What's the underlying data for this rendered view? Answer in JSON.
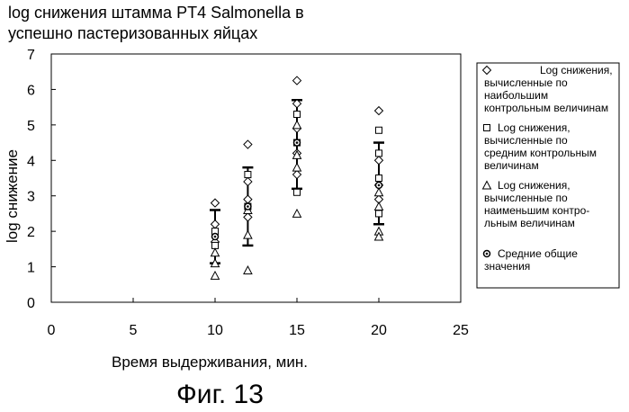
{
  "chart_data": {
    "type": "scatter",
    "title_line1": "log снижения штамма PT4 Salmonella в",
    "title_line2": "успешно пастеризованных яйцах",
    "xlabel": "Время выдерживания, мин.",
    "ylabel": "log снижение",
    "xlim": [
      0,
      25
    ],
    "ylim": [
      0,
      7
    ],
    "x_ticks": [
      "0",
      "5",
      "10",
      "15",
      "20",
      "25"
    ],
    "y_ticks": [
      "0",
      "1",
      "2",
      "3",
      "4",
      "5",
      "6",
      "7"
    ],
    "grid": false,
    "legend_position": "right",
    "legend": [
      {
        "marker": "diamond",
        "lines": [
          "Log снижения,",
          "вычисленные по",
          "наибольшим",
          "контрольным величинам"
        ]
      },
      {
        "marker": "square",
        "lines": [
          "Log снижения,",
          "вычисленные по",
          "средним контрольным",
          "величинам"
        ]
      },
      {
        "marker": "triangle",
        "lines": [
          "Log снижения,",
          "вычисленные по",
          "наименьшим контро-",
          "льным величинам"
        ]
      },
      {
        "marker": "circle",
        "lines": [
          "Средние общие",
          "значения"
        ]
      }
    ],
    "series": [
      {
        "marker": "diamond",
        "points": [
          {
            "x": 10,
            "y": 2.8
          },
          {
            "x": 10,
            "y": 2.2
          },
          {
            "x": 10,
            "y": 1.7
          },
          {
            "x": 12,
            "y": 4.45
          },
          {
            "x": 12,
            "y": 3.4
          },
          {
            "x": 12,
            "y": 2.9
          },
          {
            "x": 12,
            "y": 2.4
          },
          {
            "x": 15,
            "y": 6.25
          },
          {
            "x": 15,
            "y": 5.6
          },
          {
            "x": 15,
            "y": 4.9
          },
          {
            "x": 15,
            "y": 4.2
          },
          {
            "x": 15,
            "y": 3.6
          },
          {
            "x": 20,
            "y": 5.4
          },
          {
            "x": 20,
            "y": 4.0
          },
          {
            "x": 20,
            "y": 3.3
          },
          {
            "x": 20,
            "y": 2.9
          }
        ]
      },
      {
        "marker": "square",
        "points": [
          {
            "x": 10,
            "y": 2.0
          },
          {
            "x": 10,
            "y": 1.6
          },
          {
            "x": 12,
            "y": 3.6
          },
          {
            "x": 12,
            "y": 2.7
          },
          {
            "x": 15,
            "y": 5.3
          },
          {
            "x": 15,
            "y": 4.5
          },
          {
            "x": 15,
            "y": 3.1
          },
          {
            "x": 20,
            "y": 4.85
          },
          {
            "x": 20,
            "y": 4.2
          },
          {
            "x": 20,
            "y": 3.5
          },
          {
            "x": 20,
            "y": 2.5
          }
        ]
      },
      {
        "marker": "triangle",
        "points": [
          {
            "x": 10,
            "y": 1.4
          },
          {
            "x": 10,
            "y": 1.1
          },
          {
            "x": 10,
            "y": 0.75
          },
          {
            "x": 12,
            "y": 2.6
          },
          {
            "x": 12,
            "y": 1.9
          },
          {
            "x": 12,
            "y": 0.9
          },
          {
            "x": 15,
            "y": 5.0
          },
          {
            "x": 15,
            "y": 4.15
          },
          {
            "x": 15,
            "y": 3.8
          },
          {
            "x": 15,
            "y": 2.5
          },
          {
            "x": 20,
            "y": 3.1
          },
          {
            "x": 20,
            "y": 2.7
          },
          {
            "x": 20,
            "y": 2.0
          },
          {
            "x": 20,
            "y": 1.85
          }
        ]
      },
      {
        "marker": "circle",
        "points": [
          {
            "x": 10,
            "y": 1.85
          },
          {
            "x": 12,
            "y": 2.7
          },
          {
            "x": 15,
            "y": 4.5
          },
          {
            "x": 20,
            "y": 3.3
          }
        ]
      }
    ],
    "error_bars": [
      {
        "x": 10,
        "low": 1.1,
        "high": 2.6
      },
      {
        "x": 12,
        "low": 1.6,
        "high": 3.8
      },
      {
        "x": 15,
        "low": 3.2,
        "high": 5.7
      },
      {
        "x": 20,
        "low": 2.2,
        "high": 4.5
      }
    ]
  },
  "caption": "Фиг. 13",
  "colors": {
    "ink": "#000000",
    "background": "#ffffff"
  }
}
